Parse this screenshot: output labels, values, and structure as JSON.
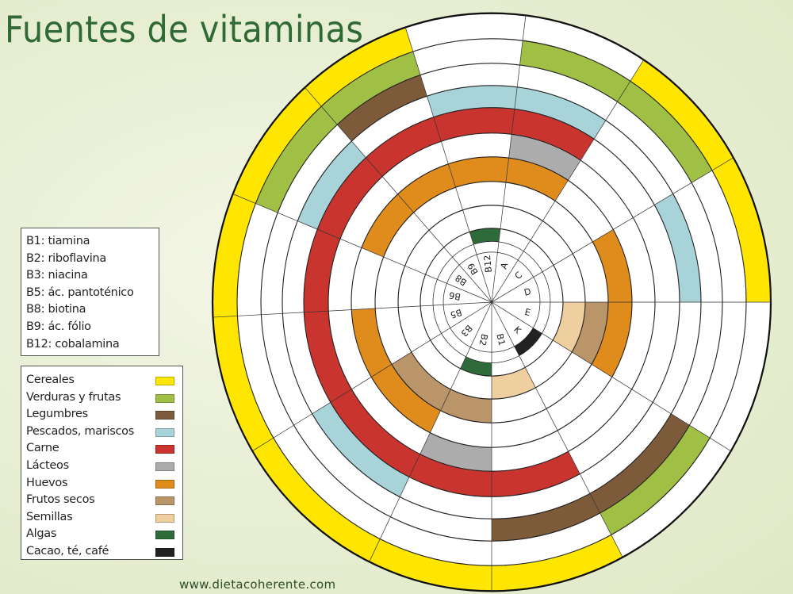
{
  "title": "Fuentes de vitaminas",
  "footer": "www.dietacoherente.com",
  "sectors": [
    "A",
    "C",
    "D",
    "E",
    "K",
    "B1",
    "B2",
    "B3",
    "B5",
    "B6",
    "B8",
    "B9",
    "B12"
  ],
  "vitamin_legend": [
    "B1: tiamina",
    "B2: riboflavina",
    "B3: niacina",
    "B5: ác. pantoténico",
    "B8: biotina",
    "B9: ác. fólio",
    "B12: cobalamina"
  ],
  "foods": [
    {
      "label": "Cereales",
      "color": "#ffe600",
      "vitamins": [
        "C",
        "D",
        "B1",
        "B2",
        "B3",
        "B5",
        "B6",
        "B8",
        "B9"
      ]
    },
    {
      "label": "Verduras y frutas",
      "color": "#a0bf45",
      "vitamins": [
        "A",
        "C",
        "K",
        "B8",
        "B9"
      ]
    },
    {
      "label": "Legumbres",
      "color": "#7d5a3a",
      "vitamins": [
        "K",
        "B1",
        "B9"
      ]
    },
    {
      "label": "Pescados, mariscos",
      "color": "#a8d3d8",
      "vitamins": [
        "A",
        "D",
        "B3",
        "B8",
        "B12"
      ]
    },
    {
      "label": "Carne",
      "color": "#c9352e",
      "vitamins": [
        "A",
        "B1",
        "B2",
        "B3",
        "B5",
        "B6",
        "B8",
        "B9",
        "B12"
      ]
    },
    {
      "label": "Lácteos",
      "color": "#acacac",
      "vitamins": [
        "A",
        "B2"
      ]
    },
    {
      "label": "Huevos",
      "color": "#e08c1c",
      "vitamins": [
        "A",
        "D",
        "E",
        "B3",
        "B5",
        "B8",
        "B9",
        "B12"
      ]
    },
    {
      "label": "Frutos secos",
      "color": "#b99569",
      "vitamins": [
        "E",
        "B2",
        "B3"
      ]
    },
    {
      "label": "Semillas",
      "color": "#efcea0",
      "vitamins": [
        "E",
        "B1"
      ]
    },
    {
      "label": "Algas",
      "color": "#2f6a3a",
      "vitamins": [
        "B2",
        "B12"
      ]
    },
    {
      "label": "Cacao, té, café",
      "color": "#222222",
      "vitamins": [
        "K"
      ]
    }
  ]
}
